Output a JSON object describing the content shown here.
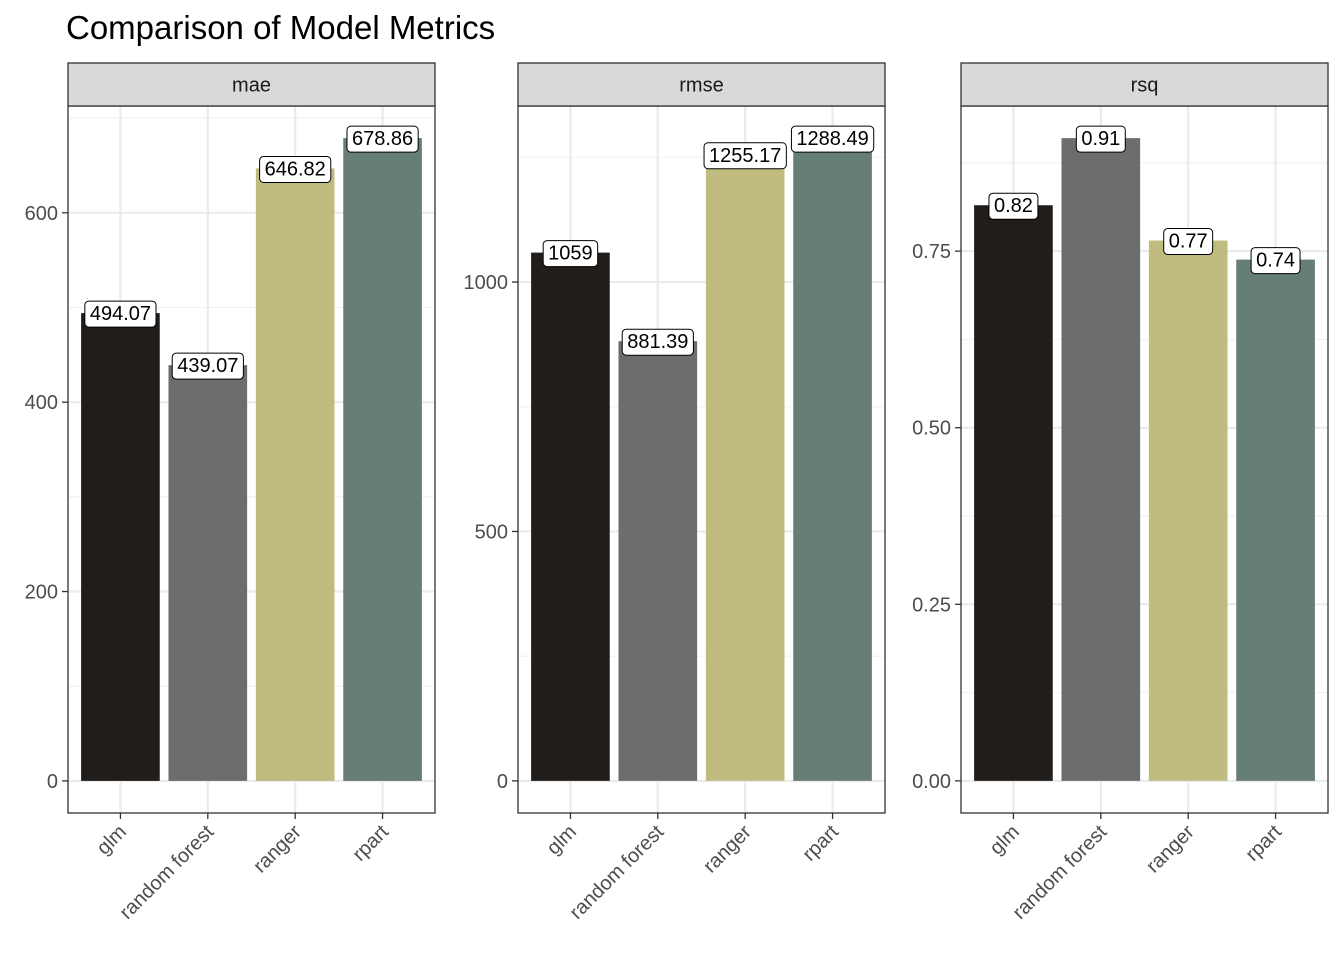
{
  "chart_data": {
    "type": "bar",
    "title": "Comparison of Model Metrics",
    "categories": [
      "glm",
      "random forest",
      "ranger",
      "rpart"
    ],
    "colors": [
      "#211d1a",
      "#6d6d6d",
      "#c0bc7f",
      "#677e76"
    ],
    "grid": true,
    "legend": "none",
    "panels": [
      {
        "strip": "mae",
        "values": [
          494.07,
          439.07,
          646.82,
          678.86
        ],
        "labels": [
          "494.07",
          "439.07",
          "646.82",
          "678.86"
        ],
        "yticks": [
          0,
          200,
          400,
          600
        ],
        "ytick_labels": [
          "0",
          "200",
          "400",
          "600"
        ],
        "ylim": [
          -33.9,
          712.8
        ]
      },
      {
        "strip": "rmse",
        "values": [
          1059,
          881.39,
          1255.17,
          1288.49
        ],
        "labels": [
          "1059",
          "881.39",
          "1255.17",
          "1288.49"
        ],
        "yticks": [
          0,
          500,
          1000
        ],
        "ytick_labels": [
          "0",
          "500",
          "1000"
        ],
        "ylim": [
          -64.4,
          1352.9
        ]
      },
      {
        "strip": "rsq",
        "values": [
          0.815,
          0.91,
          0.765,
          0.738
        ],
        "labels": [
          "0.82",
          "0.91",
          "0.77",
          "0.74"
        ],
        "yticks": [
          0,
          0.25,
          0.5,
          0.75
        ],
        "ytick_labels": [
          "0.00",
          "0.25",
          "0.50",
          "0.75"
        ],
        "ylim": [
          -0.0455,
          0.9555
        ]
      }
    ]
  }
}
